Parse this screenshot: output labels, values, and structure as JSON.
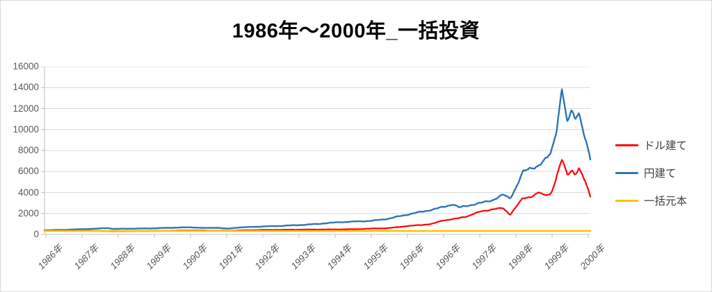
{
  "title": "1986年〜2000年_一括投資",
  "colors": {
    "red": "#ff0000",
    "blue": "#2e75b6",
    "gold": "#ffc000",
    "gridline": "#d9d9d9",
    "axis_line": "#bfbfbf",
    "axis_text": "#595959",
    "legend_text": "#404040",
    "title_text": "#000000"
  },
  "y_axis": {
    "ticks": [
      "0",
      "2000",
      "4000",
      "6000",
      "8000",
      "10000",
      "12000",
      "14000",
      "16000"
    ],
    "min": 0,
    "max": 16000,
    "step": 2000
  },
  "x_axis": {
    "ticks": [
      "1986年",
      "1987年",
      "1988年",
      "1989年",
      "1990年",
      "1991年",
      "1992年",
      "1993年",
      "1994年",
      "1995年",
      "1996年",
      "1996年",
      "1997年",
      "1998年",
      "1999年",
      "2000年"
    ]
  },
  "legend": {
    "items": [
      {
        "label": "ドル建て",
        "color_key": "red"
      },
      {
        "label": "円建て",
        "color_key": "blue"
      },
      {
        "label": "一括元本",
        "color_key": "gold"
      }
    ]
  },
  "chart_data": {
    "type": "line",
    "title": "1986年〜2000年_一括投資",
    "ylim": [
      0,
      16000
    ],
    "grid": true,
    "legend_position": "right",
    "x_tick_labels": [
      "1986年",
      "1987年",
      "1988年",
      "1989年",
      "1990年",
      "1991年",
      "1992年",
      "1993年",
      "1994年",
      "1995年",
      "1996年",
      "1996年",
      "1997年",
      "1998年",
      "1999年",
      "2000年"
    ],
    "x_unit": "fraction_of_axis_1986_to_2000",
    "series": [
      {
        "name": "ドル建て",
        "color_key": "red",
        "points": [
          [
            0.0,
            380
          ],
          [
            0.02,
            360
          ],
          [
            0.05,
            330
          ],
          [
            0.08,
            345
          ],
          [
            0.11,
            330
          ],
          [
            0.125,
            295
          ],
          [
            0.15,
            320
          ],
          [
            0.18,
            330
          ],
          [
            0.21,
            340
          ],
          [
            0.24,
            360
          ],
          [
            0.27,
            385
          ],
          [
            0.3,
            360
          ],
          [
            0.335,
            350
          ],
          [
            0.37,
            400
          ],
          [
            0.4,
            430
          ],
          [
            0.435,
            445
          ],
          [
            0.47,
            460
          ],
          [
            0.5,
            470
          ],
          [
            0.535,
            480
          ],
          [
            0.57,
            500
          ],
          [
            0.6,
            560
          ],
          [
            0.63,
            600
          ],
          [
            0.665,
            800
          ],
          [
            0.69,
            900
          ],
          [
            0.71,
            1000
          ],
          [
            0.73,
            1340
          ],
          [
            0.755,
            1500
          ],
          [
            0.775,
            1750
          ],
          [
            0.8,
            2200
          ],
          [
            0.82,
            2400
          ],
          [
            0.84,
            2500
          ],
          [
            0.853,
            1900
          ],
          [
            0.865,
            2700
          ],
          [
            0.876,
            3400
          ],
          [
            0.89,
            3600
          ],
          [
            0.906,
            3990
          ],
          [
            0.915,
            3700
          ],
          [
            0.928,
            3900
          ],
          [
            0.948,
            7100
          ],
          [
            0.958,
            5640
          ],
          [
            0.966,
            6200
          ],
          [
            0.972,
            5750
          ],
          [
            0.979,
            6300
          ],
          [
            0.99,
            5090
          ],
          [
            1.0,
            3650
          ]
        ]
      },
      {
        "name": "円建て",
        "color_key": "blue",
        "points": [
          [
            0.0,
            400
          ],
          [
            0.03,
            430
          ],
          [
            0.07,
            500
          ],
          [
            0.1,
            560
          ],
          [
            0.115,
            610
          ],
          [
            0.128,
            520
          ],
          [
            0.15,
            545
          ],
          [
            0.18,
            565
          ],
          [
            0.21,
            600
          ],
          [
            0.24,
            650
          ],
          [
            0.268,
            680
          ],
          [
            0.295,
            610
          ],
          [
            0.315,
            645
          ],
          [
            0.335,
            545
          ],
          [
            0.355,
            660
          ],
          [
            0.4,
            760
          ],
          [
            0.435,
            820
          ],
          [
            0.47,
            900
          ],
          [
            0.5,
            1000
          ],
          [
            0.535,
            1150
          ],
          [
            0.565,
            1220
          ],
          [
            0.6,
            1300
          ],
          [
            0.63,
            1500
          ],
          [
            0.665,
            1900
          ],
          [
            0.7,
            2250
          ],
          [
            0.73,
            2600
          ],
          [
            0.748,
            2890
          ],
          [
            0.76,
            2560
          ],
          [
            0.78,
            2800
          ],
          [
            0.8,
            3000
          ],
          [
            0.822,
            3300
          ],
          [
            0.84,
            3770
          ],
          [
            0.853,
            3440
          ],
          [
            0.865,
            4600
          ],
          [
            0.876,
            5900
          ],
          [
            0.89,
            6300
          ],
          [
            0.906,
            6600
          ],
          [
            0.92,
            7200
          ],
          [
            0.928,
            7800
          ],
          [
            0.938,
            10000
          ],
          [
            0.948,
            13900
          ],
          [
            0.958,
            10400
          ],
          [
            0.966,
            12000
          ],
          [
            0.972,
            11000
          ],
          [
            0.979,
            11900
          ],
          [
            0.987,
            9700
          ],
          [
            0.993,
            8700
          ],
          [
            1.0,
            7000
          ]
        ]
      },
      {
        "name": "一括元本",
        "color_key": "gold",
        "points": [
          [
            0.0,
            330
          ],
          [
            1.0,
            330
          ]
        ]
      }
    ]
  }
}
